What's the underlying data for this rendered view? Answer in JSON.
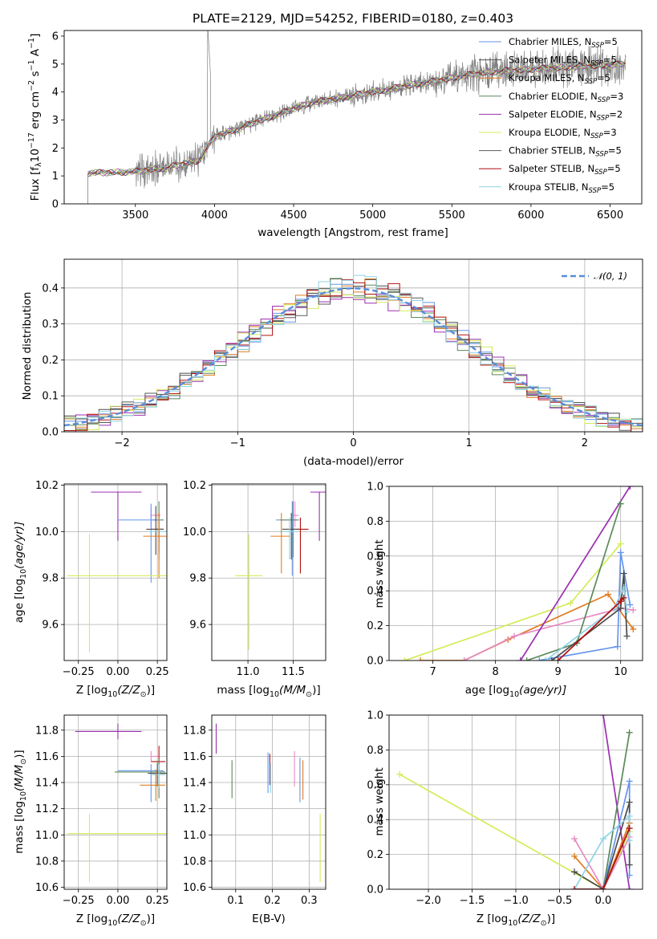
{
  "figure": {
    "title": "PLATE=2129, MJD=54252, FIBERID=0180, z=0.403"
  },
  "colors": {
    "chabrier_miles": "#6495ed",
    "salpeter_miles": "#4b4b4b",
    "kroupa_miles": "#e07b1f",
    "chabrier_elodie": "#5a8a5a",
    "salpeter_elodie": "#9b30b0",
    "kroupa_elodie": "#d4ec5a",
    "chabrier_stelib": "#5a5a5a",
    "salpeter_stelib": "#b01010",
    "kroupa_stelib": "#8fd3e6",
    "extra_pink": "#e78ac3",
    "data": "#808080",
    "normal_curve": "#5b8dd9"
  },
  "chart_data": [
    {
      "id": "spectrum",
      "type": "line",
      "xlabel": "wavelength [Angstrom, rest frame]",
      "ylabel_main": "Flux [f",
      "ylabel_sub": "λ",
      "ylabel_rest": "10",
      "ylabel_exp": "−17",
      "ylabel_tail": " erg cm",
      "ylabel_exp2": "−2",
      "ylabel_tail2": " s",
      "ylabel_exp3": "−1",
      "ylabel_tail3": " A",
      "ylabel_exp4": "−1",
      "ylabel_end": "]",
      "xlim": [
        3050,
        6700
      ],
      "ylim": [
        0,
        6.2
      ],
      "xticks": [
        "3500",
        "4000",
        "4500",
        "5000",
        "5500",
        "6000",
        "6500"
      ],
      "yticks": [
        "0",
        "1",
        "2",
        "3",
        "4",
        "5",
        "6"
      ],
      "grid": false,
      "legend_position": "lower-right",
      "data_range": [
        3200,
        6600
      ],
      "continuum_knots": [
        [
          3200,
          1.1
        ],
        [
          3500,
          1.15
        ],
        [
          3700,
          1.3
        ],
        [
          3900,
          1.55
        ],
        [
          4000,
          2.4
        ],
        [
          4300,
          3.0
        ],
        [
          4600,
          3.6
        ],
        [
          5000,
          4.0
        ],
        [
          5300,
          4.3
        ],
        [
          5700,
          4.7
        ],
        [
          6100,
          4.85
        ],
        [
          6600,
          5.0
        ]
      ],
      "series": [
        {
          "name": "Chabrier MILES, N",
          "sub": "SSP",
          "suffix": "=5",
          "color_key": "chabrier_miles"
        },
        {
          "name": "Salpeter MILES, N",
          "sub": "SSP",
          "suffix": "=5",
          "color_key": "salpeter_miles"
        },
        {
          "name": "Kroupa MILES, N",
          "sub": "SSP",
          "suffix": "=5",
          "color_key": "kroupa_miles"
        },
        {
          "name": "Chabrier ELODIE, N",
          "sub": "SSP",
          "suffix": "=3",
          "color_key": "chabrier_elodie"
        },
        {
          "name": "Salpeter ELODIE, N",
          "sub": "SSP",
          "suffix": "=2",
          "color_key": "salpeter_elodie"
        },
        {
          "name": "Kroupa ELODIE, N",
          "sub": "SSP",
          "suffix": "=3",
          "color_key": "kroupa_elodie"
        },
        {
          "name": "Chabrier STELIB, N",
          "sub": "SSP",
          "suffix": "=5",
          "color_key": "chabrier_stelib"
        },
        {
          "name": "Salpeter STELIB, N",
          "sub": "SSP",
          "suffix": "=5",
          "color_key": "salpeter_stelib"
        },
        {
          "name": "Kroupa STELIB, N",
          "sub": "SSP",
          "suffix": "=5",
          "color_key": "kroupa_stelib"
        }
      ]
    },
    {
      "id": "residuals",
      "type": "line",
      "xlabel": "(data-model)/error",
      "ylabel": "Normed distribution",
      "xlim": [
        -2.5,
        2.5
      ],
      "ylim": [
        0,
        0.48
      ],
      "xticks": [
        "−2",
        "−1",
        "0",
        "1",
        "2"
      ],
      "yticks": [
        "0.0",
        "0.1",
        "0.2",
        "0.3",
        "0.4"
      ],
      "grid": true,
      "legend_position": "top-right",
      "legend_label": "𝒩(0, 1)",
      "bin_width": 0.1,
      "normal_mean": 0,
      "normal_sigma": 1
    },
    {
      "id": "age_vs_Z",
      "type": "scatter",
      "xlabel": "Z [log",
      "xlabel_sub": "10",
      "xlabel_rest": "(Z/Z",
      "xlabel_sub2": "⊙",
      "xlabel_end": ")]",
      "ylabel": "age  [log",
      "ylabel_sub": "10",
      "ylabel_end": "(age/yr)]",
      "xlim": [
        -0.34,
        0.31
      ],
      "ylim": [
        9.445,
        10.205
      ],
      "xticks": [
        "−0.25",
        "0.00",
        "0.25"
      ],
      "yticks": [
        "9.6",
        "9.8",
        "10.0",
        "10.2"
      ],
      "grid": true,
      "points": [
        {
          "x": 0.0,
          "y": 10.17,
          "xerr": [
            0.17,
            0.15
          ],
          "yerr": [
            0.21,
            0.0
          ],
          "color_key": "salpeter_elodie"
        },
        {
          "x": 0.21,
          "y": 10.07,
          "xerr": [
            0.0,
            0.06
          ],
          "yerr": [
            0.05,
            0.03
          ],
          "color_key": "extra_pink"
        },
        {
          "x": 0.26,
          "y": 10.05,
          "xerr": [
            0.04,
            0.03
          ],
          "yerr": [
            0.1,
            0.08
          ],
          "color_key": "chabrier_elodie"
        },
        {
          "x": 0.21,
          "y": 10.05,
          "xerr": [
            0.21,
            0.06
          ],
          "yerr": [
            0.27,
            0.07
          ],
          "color_key": "chabrier_miles"
        },
        {
          "x": 0.26,
          "y": 10.01,
          "xerr": [
            0.05,
            0.03
          ],
          "yerr": [
            0.1,
            0.07
          ],
          "color_key": "salpeter_stelib"
        },
        {
          "x": 0.24,
          "y": 10.01,
          "xerr": [
            0.06,
            0.05
          ],
          "yerr": [
            0.11,
            0.1
          ],
          "color_key": "salpeter_miles"
        },
        {
          "x": 0.26,
          "y": 10.0,
          "xerr": [
            0.06,
            0.05
          ],
          "yerr": [
            0.12,
            0.06
          ],
          "color_key": "kroupa_stelib"
        },
        {
          "x": 0.26,
          "y": 9.98,
          "xerr": [
            0.1,
            0.05
          ],
          "yerr": [
            0.18,
            0.1
          ],
          "color_key": "kroupa_miles"
        },
        {
          "x": -0.18,
          "y": 9.81,
          "xerr": [
            0.14,
            0.49
          ],
          "yerr": [
            0.33,
            0.18
          ],
          "color_key": "kroupa_elodie"
        }
      ]
    },
    {
      "id": "age_vs_mass",
      "type": "scatter",
      "xlabel": "mass [log",
      "xlabel_sub": "10",
      "xlabel_rest": "(M/M",
      "xlabel_sub2": "⊙",
      "xlabel_end": ")]",
      "xlim": [
        10.6,
        11.86
      ],
      "ylim": [
        9.445,
        10.205
      ],
      "xticks": [
        "11.0",
        "11.5"
      ],
      "yticks": [
        "9.6",
        "9.8",
        "10.0",
        "10.2"
      ],
      "grid": true,
      "points": [
        {
          "x": 11.79,
          "y": 10.17,
          "xerr": [
            0.1,
            0.09
          ],
          "yerr": [
            0.21,
            0.0
          ],
          "color_key": "salpeter_elodie"
        },
        {
          "x": 11.52,
          "y": 10.07,
          "xerr": [
            0.03,
            0.04
          ],
          "yerr": [
            0.05,
            0.06
          ],
          "color_key": "extra_pink"
        },
        {
          "x": 11.49,
          "y": 10.05,
          "xerr": [
            0.18,
            0.08
          ],
          "yerr": [
            0.24,
            0.08
          ],
          "color_key": "chabrier_miles"
        },
        {
          "x": 11.5,
          "y": 10.05,
          "xerr": [
            0.15,
            0.05
          ],
          "yerr": [
            0.16,
            0.08
          ],
          "color_key": "chabrier_elodie"
        },
        {
          "x": 11.58,
          "y": 10.01,
          "xerr": [
            0.08,
            0.09
          ],
          "yerr": [
            0.19,
            0.05
          ],
          "color_key": "salpeter_stelib"
        },
        {
          "x": 11.48,
          "y": 10.01,
          "xerr": [
            0.1,
            0.08
          ],
          "yerr": [
            0.13,
            0.07
          ],
          "color_key": "salpeter_miles"
        },
        {
          "x": 11.46,
          "y": 10.0,
          "xerr": [
            0.11,
            0.08
          ],
          "yerr": [
            0.12,
            0.06
          ],
          "color_key": "kroupa_stelib"
        },
        {
          "x": 11.37,
          "y": 9.98,
          "xerr": [
            0.12,
            0.09
          ],
          "yerr": [
            0.16,
            0.1
          ],
          "color_key": "kroupa_miles"
        },
        {
          "x": 11.01,
          "y": 9.81,
          "xerr": [
            0.15,
            0.15
          ],
          "yerr": [
            0.32,
            0.18
          ],
          "color_key": "kroupa_elodie"
        }
      ]
    },
    {
      "id": "weight_vs_age",
      "type": "line",
      "xlabel": "age  [log",
      "xlabel_sub": "10",
      "xlabel_end": "(age/yr)]",
      "ylabel": "mass weight",
      "xlim": [
        6.3,
        10.35
      ],
      "ylim": [
        0,
        1.0
      ],
      "xticks": [
        "7",
        "8",
        "9",
        "10"
      ],
      "yticks": [
        "0.0",
        "0.2",
        "0.4",
        "0.6",
        "0.8",
        "1.0"
      ],
      "grid": true,
      "series": [
        {
          "color_key": "kroupa_elodie",
          "x": [
            6.55,
            9.2,
            10.0
          ],
          "y": [
            0.0,
            0.33,
            0.67
          ]
        },
        {
          "color_key": "kroupa_miles",
          "x": [
            6.8,
            7.5,
            8.2,
            9.8,
            10.2
          ],
          "y": [
            0.0,
            0.0,
            0.12,
            0.38,
            0.18
          ]
        },
        {
          "color_key": "extra_pink",
          "x": [
            7.5,
            8.3,
            10.0,
            10.2
          ],
          "y": [
            0.0,
            0.14,
            0.3,
            0.29
          ]
        },
        {
          "color_key": "salpeter_elodie",
          "x": [
            8.4,
            10.15
          ],
          "y": [
            0.0,
            1.0
          ]
        },
        {
          "color_key": "chabrier_elodie",
          "x": [
            8.5,
            9.3,
            10.0
          ],
          "y": [
            0.0,
            0.1,
            0.9
          ]
        },
        {
          "color_key": "chabrier_miles",
          "x": [
            8.7,
            9.95,
            10.0,
            10.15
          ],
          "y": [
            0.0,
            0.08,
            0.62,
            0.32
          ]
        },
        {
          "color_key": "salpeter_miles",
          "x": [
            8.9,
            10.0,
            10.05,
            10.1
          ],
          "y": [
            0.0,
            0.3,
            0.5,
            0.14
          ]
        },
        {
          "color_key": "kroupa_stelib",
          "x": [
            8.8,
            9.9,
            10.05,
            10.1
          ],
          "y": [
            0.0,
            0.3,
            0.42,
            0.28
          ]
        },
        {
          "color_key": "salpeter_stelib",
          "x": [
            9.0,
            10.0,
            10.05
          ],
          "y": [
            0.0,
            0.34,
            0.36
          ]
        }
      ]
    },
    {
      "id": "mass_vs_Z",
      "type": "scatter",
      "xlabel": "Z [log",
      "xlabel_sub": "10",
      "xlabel_rest": "(Z/Z",
      "xlabel_sub2": "⊙",
      "xlabel_end": ")]",
      "ylabel": "mass [log",
      "ylabel_sub": "10",
      "ylabel_rest": "(M/M",
      "ylabel_sub2": "⊙",
      "ylabel_end": ")]",
      "xlim": [
        -0.34,
        0.31
      ],
      "ylim": [
        10.585,
        11.915
      ],
      "xticks": [
        "−0.25",
        "0.00",
        "0.25"
      ],
      "yticks": [
        "10.6",
        "10.8",
        "11.0",
        "11.2",
        "11.4",
        "11.6",
        "11.8"
      ],
      "grid": true,
      "points": [
        {
          "x": 0.0,
          "y": 11.79,
          "xerr": [
            0.27,
            0.15
          ],
          "yerr": [
            0.06,
            0.06
          ],
          "color_key": "salpeter_elodie"
        },
        {
          "x": 0.21,
          "y": 11.6,
          "xerr": [
            0.0,
            0.05
          ],
          "yerr": [
            0.04,
            0.04
          ],
          "color_key": "extra_pink"
        },
        {
          "x": 0.26,
          "y": 11.56,
          "xerr": [
            0.05,
            0.04
          ],
          "yerr": [
            0.08,
            0.12
          ],
          "color_key": "salpeter_stelib"
        },
        {
          "x": 0.21,
          "y": 11.49,
          "xerr": [
            0.21,
            0.08
          ],
          "yerr": [
            0.24,
            0.05
          ],
          "color_key": "chabrier_miles"
        },
        {
          "x": 0.26,
          "y": 11.48,
          "xerr": [
            0.28,
            0.04
          ],
          "yerr": [
            0.2,
            0.1
          ],
          "color_key": "chabrier_elodie"
        },
        {
          "x": 0.25,
          "y": 11.47,
          "xerr": [
            0.06,
            0.06
          ],
          "yerr": [
            0.1,
            0.08
          ],
          "color_key": "salpeter_miles"
        },
        {
          "x": 0.26,
          "y": 11.46,
          "xerr": [
            0.05,
            0.04
          ],
          "yerr": [
            0.1,
            0.08
          ],
          "color_key": "kroupa_stelib"
        },
        {
          "x": 0.24,
          "y": 11.38,
          "xerr": [
            0.1,
            0.06
          ],
          "yerr": [
            0.12,
            0.12
          ],
          "color_key": "kroupa_miles"
        },
        {
          "x": -0.18,
          "y": 11.01,
          "xerr": [
            0.14,
            0.49
          ],
          "yerr": [
            0.37,
            0.15
          ],
          "color_key": "kroupa_elodie"
        }
      ]
    },
    {
      "id": "mass_vs_ebv",
      "type": "scatter",
      "xlabel": "E(B-V)",
      "xlim": [
        0.035,
        0.345
      ],
      "ylim": [
        10.585,
        11.915
      ],
      "xticks": [
        "0.1",
        "0.2",
        "0.3"
      ],
      "yticks": [
        "10.6",
        "10.8",
        "11.0",
        "11.2",
        "11.4",
        "11.6",
        "11.8"
      ],
      "grid": true,
      "points": [
        {
          "x": 0.047,
          "y": 11.74,
          "yerr": [
            0.12,
            0.11
          ],
          "color_key": "salpeter_elodie"
        },
        {
          "x": 0.09,
          "y": 11.4,
          "yerr": [
            0.12,
            0.17
          ],
          "color_key": "chabrier_elodie"
        },
        {
          "x": 0.188,
          "y": 11.46,
          "yerr": [
            0.14,
            0.17
          ],
          "color_key": "chabrier_miles"
        },
        {
          "x": 0.193,
          "y": 11.52,
          "yerr": [
            0.14,
            0.1
          ],
          "color_key": "salpeter_stelib"
        },
        {
          "x": 0.195,
          "y": 11.43,
          "yerr": [
            0.11,
            0.12
          ],
          "color_key": "kroupa_stelib"
        },
        {
          "x": 0.26,
          "y": 11.5,
          "yerr": [
            0.13,
            0.14
          ],
          "color_key": "extra_pink"
        },
        {
          "x": 0.275,
          "y": 11.45,
          "yerr": [
            0.2,
            0.14
          ],
          "color_key": "chabrier_miles"
        },
        {
          "x": 0.283,
          "y": 11.45,
          "yerr": [
            0.18,
            0.12
          ],
          "color_key": "kroupa_miles"
        },
        {
          "x": 0.33,
          "y": 10.89,
          "yerr": [
            0.25,
            0.27
          ],
          "color_key": "kroupa_elodie"
        }
      ]
    },
    {
      "id": "weight_vs_Z",
      "type": "line",
      "xlabel": "Z [log",
      "xlabel_sub": "10",
      "xlabel_rest": "(Z/Z",
      "xlabel_sub2": "⊙",
      "xlabel_end": ")]",
      "ylabel": "mass weight",
      "xlim": [
        -2.45,
        0.45
      ],
      "ylim": [
        0,
        1.0
      ],
      "xticks": [
        "−2.0",
        "−1.5",
        "−1.0",
        "−0.5",
        "0.0"
      ],
      "yticks": [
        "0.0",
        "0.2",
        "0.4",
        "0.6",
        "0.8",
        "1.0"
      ],
      "grid": true,
      "series": [
        {
          "color_key": "kroupa_elodie",
          "x": [
            -2.33,
            0.0,
            0.3
          ],
          "y": [
            0.66,
            0.0,
            0.33
          ]
        },
        {
          "color_key": "salpeter_elodie",
          "x": [
            0.0,
            0.3
          ],
          "y": [
            1.0,
            0.0
          ]
        },
        {
          "color_key": "chabrier_elodie",
          "x": [
            0.0,
            0.3
          ],
          "y": [
            0.0,
            0.9
          ]
        },
        {
          "color_key": "chabrier_miles",
          "x": [
            -0.33,
            0.0,
            0.3,
            0.3
          ],
          "y": [
            0.0,
            0.0,
            0.62,
            0.08
          ]
        },
        {
          "color_key": "kroupa_miles",
          "x": [
            -0.33,
            0.0,
            0.3
          ],
          "y": [
            0.19,
            0.0,
            0.38
          ]
        },
        {
          "color_key": "extra_pink",
          "x": [
            -0.33,
            0.0,
            0.3
          ],
          "y": [
            0.29,
            0.0,
            0.3
          ]
        },
        {
          "color_key": "salpeter_miles",
          "x": [
            -0.33,
            0.0,
            0.3,
            0.3
          ],
          "y": [
            0.1,
            0.0,
            0.5,
            0.14
          ]
        },
        {
          "color_key": "kroupa_stelib",
          "x": [
            -0.33,
            0.0,
            0.3,
            0.3
          ],
          "y": [
            0.0,
            0.29,
            0.42,
            0.28
          ]
        },
        {
          "color_key": "salpeter_stelib",
          "x": [
            -0.33,
            0.0,
            0.3
          ],
          "y": [
            0.0,
            0.0,
            0.35
          ]
        }
      ]
    }
  ]
}
